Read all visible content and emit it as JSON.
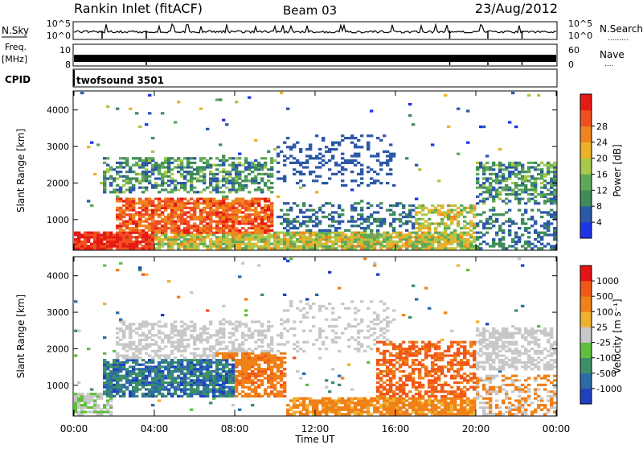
{
  "header": {
    "station": "Rankin Inlet (fitACF)",
    "beam": "Beam 03",
    "date": "23/Aug/2012"
  },
  "strips": {
    "nsky_label": "N.Sky",
    "nsky_ticks": [
      "10^5",
      "10^0"
    ],
    "nsearch_label": "N.Search",
    "nsearch_ticks": [
      "10^5",
      "10^0"
    ],
    "freq_label": "Freq.",
    "freq_unit": "[MHz]",
    "freq_ticks": [
      "10",
      "8"
    ],
    "nave_label": "Nave",
    "nave_ticks": [
      "60",
      "0"
    ],
    "cpid_label": "CPID",
    "cpid_value": "twofsound 3501"
  },
  "chart_data": [
    {
      "type": "heatmap",
      "name": "power",
      "ylabel": "Slant Range [km]",
      "xlabel": "Time UT",
      "ylim": [
        180,
        4500
      ],
      "yticks": [
        "1000",
        "2000",
        "3000",
        "4000"
      ],
      "colorbar_label": "Power [dB]",
      "colorbar_ticks": [
        "4",
        "8",
        "12",
        "16",
        "20",
        "24",
        "28"
      ],
      "colors": [
        "#1e35e6",
        "#2c58a8",
        "#3f8c58",
        "#5fa85a",
        "#a8c84a",
        "#ecb12a",
        "#f08520",
        "#f05020",
        "#e61a14"
      ]
    },
    {
      "type": "heatmap",
      "name": "velocity",
      "ylabel": "Slant Range [km]",
      "xlabel": "Time UT",
      "ylim": [
        180,
        4500
      ],
      "yticks": [
        "1000",
        "2000",
        "3000",
        "4000"
      ],
      "colorbar_label": "Velocity [m s⁻¹]",
      "colorbar_ticks": [
        "1000",
        "500",
        "100",
        "25",
        "-25",
        "-100",
        "-500",
        "-1000"
      ],
      "colors": [
        "#2040c0",
        "#2c6aa8",
        "#3c9068",
        "#5fc040",
        "#c8c8c8",
        "#f0b030",
        "#f08018",
        "#f05818",
        "#e61414"
      ]
    }
  ],
  "xaxis": {
    "ticks": [
      "00:00",
      "04:00",
      "08:00",
      "12:00",
      "16:00",
      "20:00",
      "00:00"
    ],
    "label": "Time UT"
  }
}
